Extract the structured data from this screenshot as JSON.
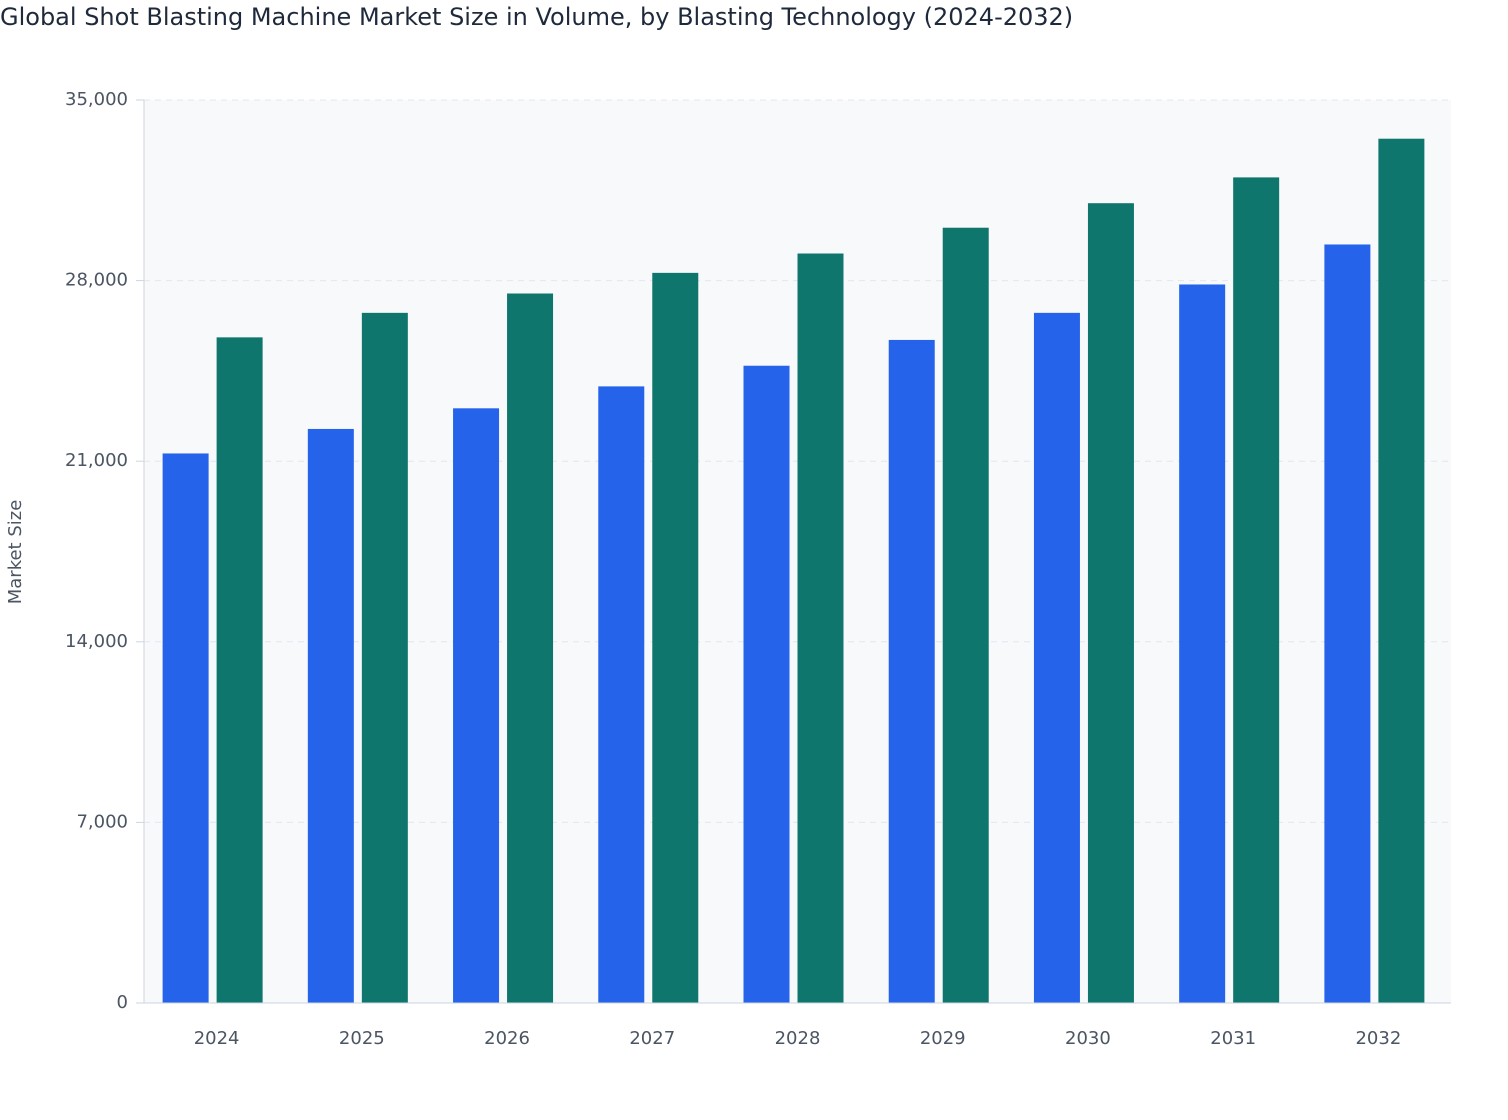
{
  "chart_data": {
    "type": "bar",
    "title": "Global Shot Blasting Machine Market Size in Volume, by Blasting Technology (2024-2032)",
    "y_label": "Market Size",
    "categories": [
      "2024",
      "2025",
      "2026",
      "2027",
      "2028",
      "2029",
      "2030",
      "2031",
      "2032"
    ],
    "series": [
      {
        "color": "#2563eb",
        "values": [
          21300,
          22250,
          23050,
          23900,
          24700,
          25700,
          26750,
          27850,
          29400
        ]
      },
      {
        "color": "#0f766e",
        "values": [
          25800,
          26750,
          27500,
          28300,
          29050,
          30050,
          31000,
          32000,
          33500
        ]
      }
    ],
    "ylim": [
      0,
      35000
    ],
    "yticks": [
      0,
      {
        "value": 7000,
        "label": "7,000"
      },
      {
        "value": 14000,
        "label": "14,000"
      },
      {
        "value": 21000,
        "label": "21,000"
      },
      {
        "value": 28000,
        "label": "28,000"
      },
      {
        "value": 35000,
        "label": "35,000"
      }
    ],
    "grid": true
  }
}
